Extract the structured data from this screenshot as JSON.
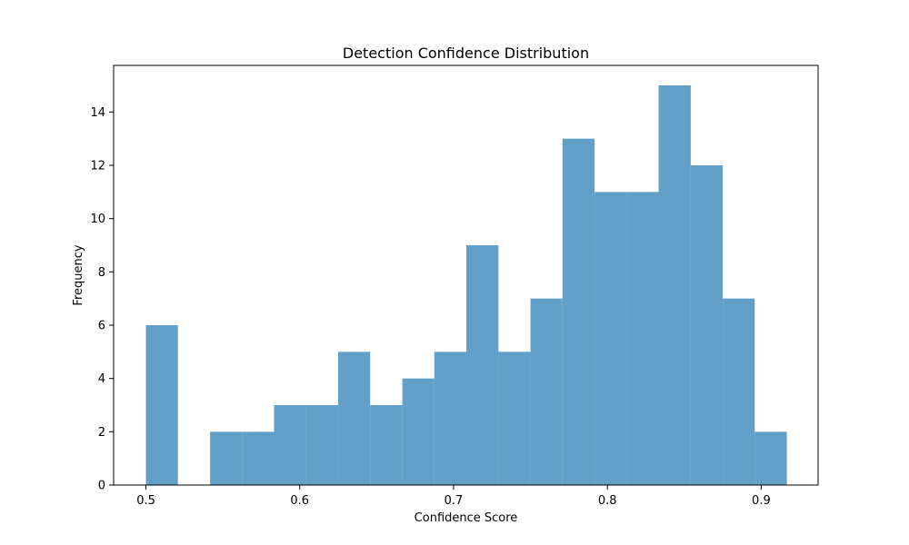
{
  "chart_data": {
    "type": "bar",
    "subtype": "histogram",
    "title": "Detection Confidence Distribution",
    "xlabel": "Confidence Score",
    "ylabel": "Frequency",
    "xlim": [
      0.479,
      0.937
    ],
    "ylim": [
      0,
      15.75
    ],
    "x_ticks": [
      0.5,
      0.6,
      0.7,
      0.8,
      0.9
    ],
    "y_ticks": [
      0,
      2,
      4,
      6,
      8,
      10,
      12,
      14
    ],
    "bin_edges": [
      0.5,
      0.5208,
      0.5417,
      0.5625,
      0.5833,
      0.6042,
      0.625,
      0.6458,
      0.6667,
      0.6875,
      0.7083,
      0.7292,
      0.75,
      0.7708,
      0.7917,
      0.8125,
      0.8333,
      0.8542,
      0.875,
      0.8958,
      0.9167
    ],
    "values": [
      6,
      0,
      2,
      2,
      3,
      3,
      5,
      3,
      4,
      5,
      9,
      5,
      7,
      13,
      11,
      11,
      15,
      12,
      7,
      2
    ],
    "bar_color": "#1f77b4",
    "bar_alpha": 0.7,
    "grid": false,
    "legend": false
  }
}
